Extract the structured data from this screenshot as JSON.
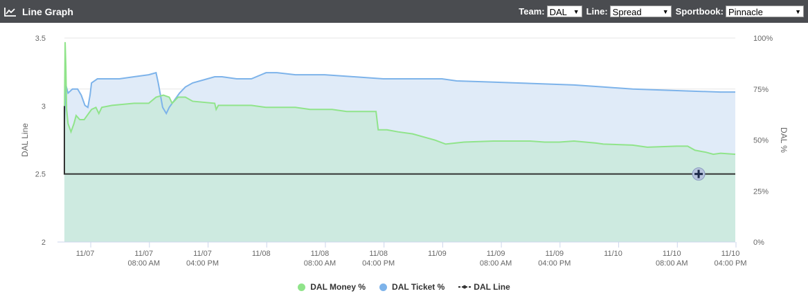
{
  "header": {
    "title": "Line Graph",
    "team_label": "Team:",
    "team_value": "DAL",
    "line_label": "Line:",
    "line_value": "Spread",
    "sportsbook_label": "Sportbook:",
    "sportsbook_value": "Pinnacle"
  },
  "colors": {
    "header_bg": "#4a4c50",
    "money": "#90e48a",
    "ticket": "#7db3ea",
    "line": "#333333",
    "money_fill": "#cdeae0",
    "ticket_fill": "#e0ebf8"
  },
  "chart_data": {
    "type": "line",
    "left_axis": {
      "label": "DAL Line",
      "ylim": [
        2,
        3.5
      ],
      "ticks": [
        "2",
        "2.5",
        "3",
        "3.5"
      ]
    },
    "right_axis": {
      "label": "DAL %",
      "ylim": [
        0,
        100
      ],
      "ticks": [
        "0%",
        "25%",
        "50%",
        "75%",
        "100%"
      ]
    },
    "x_axis": {
      "tick_labels": [
        [
          "11/07",
          ""
        ],
        [
          "11/07",
          "08:00 AM"
        ],
        [
          "11/07",
          "04:00 PM"
        ],
        [
          "11/08",
          ""
        ],
        [
          "11/08",
          "08:00 AM"
        ],
        [
          "11/08",
          "04:00 PM"
        ],
        [
          "11/09",
          ""
        ],
        [
          "11/09",
          "08:00 AM"
        ],
        [
          "11/09",
          "04:00 PM"
        ],
        [
          "11/10",
          ""
        ],
        [
          "11/10",
          "08:00 AM"
        ],
        [
          "11/10",
          "04:00 PM"
        ]
      ],
      "tick_hours": [
        0,
        8,
        16,
        24,
        32,
        40,
        48,
        56,
        64,
        72,
        80,
        88
      ],
      "range_hours": [
        -3.5,
        88
      ]
    },
    "grid": true,
    "legend_position": "bottom-center",
    "series": [
      {
        "name": "DAL Money %",
        "axis": "right",
        "points": [
          [
            -3.5,
            60
          ],
          [
            -3.4,
            98
          ],
          [
            -3.3,
            86
          ],
          [
            -3.2,
            65
          ],
          [
            -3.0,
            58
          ],
          [
            -2.6,
            54
          ],
          [
            -2.2,
            58
          ],
          [
            -1.9,
            62
          ],
          [
            -1.4,
            60
          ],
          [
            -0.8,
            60
          ],
          [
            -0.4,
            62
          ],
          [
            0.2,
            65
          ],
          [
            0.8,
            66
          ],
          [
            1.2,
            63
          ],
          [
            1.6,
            66
          ],
          [
            3.0,
            67
          ],
          [
            6.0,
            68
          ],
          [
            8.0,
            68
          ],
          [
            9.0,
            71
          ],
          [
            10.0,
            72
          ],
          [
            10.8,
            71
          ],
          [
            11.2,
            68
          ],
          [
            12.0,
            71
          ],
          [
            13.0,
            71
          ],
          [
            14.0,
            69
          ],
          [
            17.0,
            68
          ],
          [
            17.2,
            65
          ],
          [
            17.5,
            67
          ],
          [
            19.0,
            67
          ],
          [
            22.0,
            67
          ],
          [
            24.0,
            66
          ],
          [
            28.0,
            66
          ],
          [
            30.0,
            65
          ],
          [
            33.0,
            65
          ],
          [
            35.0,
            64
          ],
          [
            39.0,
            64
          ],
          [
            39.3,
            55
          ],
          [
            40.5,
            55
          ],
          [
            42.0,
            54
          ],
          [
            44.0,
            53
          ],
          [
            46.0,
            51
          ],
          [
            47.0,
            50
          ],
          [
            48.5,
            48
          ],
          [
            51.0,
            49
          ],
          [
            55.0,
            49.5
          ],
          [
            60.0,
            49.5
          ],
          [
            62.0,
            49
          ],
          [
            64.0,
            49
          ],
          [
            66.0,
            49.5
          ],
          [
            69.0,
            48.5
          ],
          [
            70.0,
            48
          ],
          [
            74.0,
            47.5
          ],
          [
            76.0,
            46.5
          ],
          [
            80.0,
            47
          ],
          [
            81.5,
            47
          ],
          [
            82.5,
            45
          ],
          [
            84.0,
            44
          ],
          [
            85.0,
            43
          ],
          [
            86.0,
            43.5
          ],
          [
            88.0,
            43
          ]
        ]
      },
      {
        "name": "DAL Ticket %",
        "axis": "right",
        "points": [
          [
            -3.5,
            59
          ],
          [
            -3.3,
            77
          ],
          [
            -3.0,
            73
          ],
          [
            -2.4,
            75
          ],
          [
            -1.7,
            75
          ],
          [
            -1.2,
            72
          ],
          [
            -0.7,
            67
          ],
          [
            -0.3,
            66
          ],
          [
            0.0,
            72
          ],
          [
            0.2,
            78
          ],
          [
            1.0,
            80
          ],
          [
            4.0,
            80
          ],
          [
            6.0,
            81
          ],
          [
            8.0,
            82
          ],
          [
            9.0,
            83
          ],
          [
            9.3,
            78
          ],
          [
            9.9,
            66
          ],
          [
            10.4,
            63
          ],
          [
            10.8,
            66
          ],
          [
            11.6,
            70
          ],
          [
            12.2,
            73
          ],
          [
            13.0,
            76
          ],
          [
            14.0,
            78
          ],
          [
            16.0,
            80
          ],
          [
            17.0,
            81
          ],
          [
            18.0,
            81
          ],
          [
            20.0,
            80
          ],
          [
            22.0,
            80
          ],
          [
            24.0,
            83
          ],
          [
            25.5,
            83
          ],
          [
            28.0,
            82
          ],
          [
            32.0,
            82
          ],
          [
            36.0,
            81
          ],
          [
            40.0,
            80
          ],
          [
            44.0,
            80
          ],
          [
            48.0,
            80
          ],
          [
            50.0,
            79
          ],
          [
            54.0,
            78.5
          ],
          [
            58.0,
            78
          ],
          [
            62.0,
            77.5
          ],
          [
            66.0,
            77
          ],
          [
            70.0,
            76
          ],
          [
            74.0,
            75
          ],
          [
            78.0,
            74.5
          ],
          [
            82.0,
            74
          ],
          [
            86.0,
            73.5
          ],
          [
            88.0,
            73.5
          ]
        ]
      },
      {
        "name": "DAL Line",
        "axis": "left",
        "points": [
          [
            -3.5,
            3.0
          ],
          [
            -3.5,
            2.5
          ],
          [
            88.0,
            2.5
          ]
        ]
      }
    ]
  }
}
